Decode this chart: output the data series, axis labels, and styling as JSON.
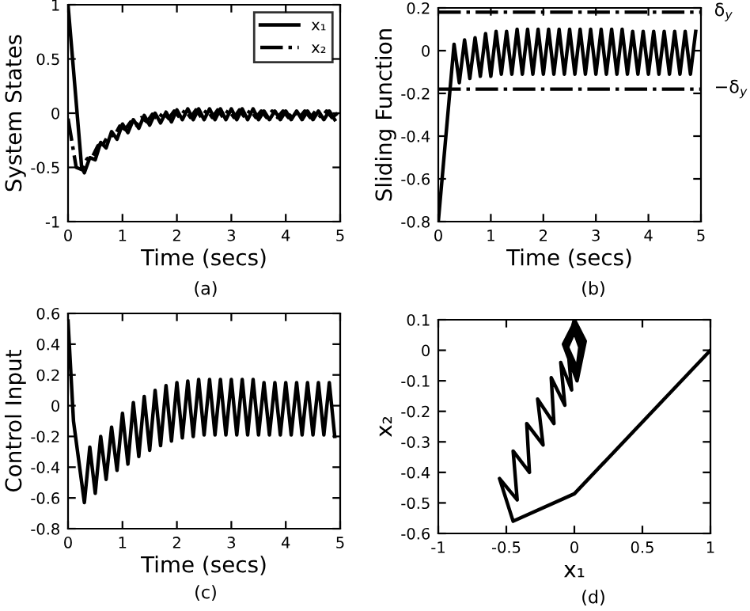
{
  "chart_data": [
    {
      "type": "line",
      "xlabel": "Time (secs)",
      "ylabel": "System States",
      "annotations": [
        "(a)"
      ],
      "xlim": [
        0,
        5
      ],
      "xticks": [
        0,
        1,
        2,
        3,
        4,
        5
      ],
      "ylim": [
        -1,
        1
      ],
      "yticks": [
        -1,
        -0.5,
        0,
        0.5,
        1
      ],
      "legend": "top right",
      "grid": false,
      "series": [
        {
          "name": "x₁",
          "color": "#000000",
          "line_style": "solid",
          "x": [
            0,
            0.25,
            0.3,
            0.4,
            0.5,
            0.6,
            0.7,
            0.8,
            0.9,
            1.0,
            1.1,
            1.2,
            1.3,
            1.4,
            1.5,
            1.6,
            1.7,
            1.8,
            1.9,
            2.0,
            2.1,
            2.2,
            2.3,
            2.4,
            2.5,
            2.6,
            2.7,
            2.8,
            2.9,
            3.0,
            3.1,
            3.2,
            3.3,
            3.4,
            3.5,
            3.6,
            3.7,
            3.8,
            3.9,
            4.0,
            4.1,
            4.2,
            4.3,
            4.4,
            4.5,
            4.6,
            4.7,
            4.8,
            4.9
          ],
          "values": [
            1,
            -0.5,
            -0.55,
            -0.41,
            -0.43,
            -0.27,
            -0.32,
            -0.17,
            -0.24,
            -0.1,
            -0.18,
            -0.06,
            -0.14,
            -0.02,
            -0.11,
            0.0,
            -0.09,
            0.01,
            -0.08,
            0.03,
            -0.06,
            0.04,
            -0.06,
            0.04,
            -0.06,
            0.04,
            -0.06,
            0.04,
            -0.06,
            0.04,
            -0.06,
            0.04,
            -0.06,
            0.04,
            -0.06,
            0.02,
            -0.06,
            0.02,
            -0.06,
            0.02,
            -0.06,
            0.02,
            -0.06,
            0.02,
            -0.06,
            0.02,
            -0.06,
            0.02,
            -0.06
          ]
        },
        {
          "name": "x₂",
          "color": "#000000",
          "line_style": "dashed",
          "x": [
            0,
            0.15,
            0.25,
            0.35,
            0.45,
            0.55,
            0.65,
            0.75,
            0.85,
            0.95,
            1.05,
            1.15,
            1.25,
            1.35,
            1.45,
            1.55,
            1.65,
            1.75,
            1.85,
            1.95,
            2.05,
            2.15,
            2.25,
            2.35,
            2.45,
            2.55,
            2.65,
            2.75,
            2.85,
            2.95,
            3.05,
            3.15,
            3.25,
            3.35,
            3.45,
            3.55,
            3.65,
            3.75,
            3.85,
            3.95,
            4.05,
            4.15,
            4.25,
            4.35,
            4.45,
            4.55,
            4.65,
            4.75,
            4.85,
            4.95
          ],
          "values": [
            -0.05,
            -0.5,
            -0.52,
            -0.42,
            -0.4,
            -0.3,
            -0.28,
            -0.2,
            -0.21,
            -0.12,
            -0.15,
            -0.08,
            -0.11,
            -0.04,
            -0.08,
            -0.01,
            -0.06,
            0.01,
            -0.05,
            0.02,
            -0.04,
            0.03,
            -0.04,
            0.03,
            -0.04,
            0.03,
            -0.04,
            0.03,
            -0.04,
            0.03,
            -0.04,
            0.03,
            -0.04,
            0.03,
            -0.04,
            0.02,
            -0.04,
            0.02,
            -0.04,
            0.02,
            -0.04,
            0.02,
            -0.04,
            0.02,
            -0.04,
            0.02,
            -0.04,
            0.02,
            -0.04,
            0.0
          ]
        }
      ]
    },
    {
      "type": "line",
      "xlabel": "Time (secs)",
      "ylabel": "Sliding Function",
      "annotations": [
        "(b)"
      ],
      "xlim": [
        0,
        5
      ],
      "xticks": [
        0,
        1,
        2,
        3,
        4,
        5
      ],
      "ylim": [
        -0.8,
        0.2
      ],
      "yticks": [
        -0.8,
        -0.6,
        -0.4,
        -0.2,
        0,
        0.2
      ],
      "grid": false,
      "ref_lines": [
        {
          "axis": "y",
          "value": 0.18,
          "label": "δ$_{y}$",
          "line_style": "dashed",
          "color": "#000000"
        },
        {
          "axis": "y",
          "value": -0.18,
          "label": "−δ$_{y}$",
          "line_style": "dashed",
          "color": "#000000"
        }
      ],
      "series": [
        {
          "color": "#000000",
          "x": [
            0,
            0.3,
            0.4,
            0.5,
            0.6,
            0.7,
            0.8,
            0.9,
            1.0,
            1.1,
            1.2,
            1.3,
            1.4,
            1.5,
            1.6,
            1.7,
            1.8,
            1.9,
            2.0,
            2.1,
            2.2,
            2.3,
            2.4,
            2.5,
            2.6,
            2.7,
            2.8,
            2.9,
            3.0,
            3.1,
            3.2,
            3.3,
            3.4,
            3.5,
            3.6,
            3.7,
            3.8,
            3.9,
            4.0,
            4.1,
            4.2,
            4.3,
            4.4,
            4.5,
            4.6,
            4.7,
            4.8,
            4.9
          ],
          "values": [
            -0.8,
            0.03,
            -0.15,
            0.05,
            -0.13,
            0.06,
            -0.12,
            0.08,
            -0.12,
            0.09,
            -0.11,
            0.09,
            -0.11,
            0.1,
            -0.11,
            0.1,
            -0.11,
            0.1,
            -0.11,
            0.1,
            -0.11,
            0.1,
            -0.11,
            0.1,
            -0.11,
            0.1,
            -0.11,
            0.1,
            -0.11,
            0.1,
            -0.11,
            0.1,
            -0.11,
            0.1,
            -0.11,
            0.09,
            -0.11,
            0.09,
            -0.11,
            0.09,
            -0.11,
            0.09,
            -0.11,
            0.09,
            -0.11,
            0.09,
            -0.11,
            0.09
          ]
        }
      ]
    },
    {
      "type": "line",
      "xlabel": "Time (secs)",
      "ylabel": "Control Input",
      "annotations": [
        "(c)"
      ],
      "xlim": [
        0,
        5
      ],
      "xticks": [
        0,
        1,
        2,
        3,
        4,
        5
      ],
      "ylim": [
        -0.8,
        0.6
      ],
      "yticks": [
        -0.8,
        -0.6,
        -0.4,
        -0.2,
        0,
        0.2,
        0.4,
        0.6
      ],
      "grid": false,
      "series": [
        {
          "color": "#000000",
          "x": [
            0,
            0.1,
            0.3,
            0.4,
            0.5,
            0.6,
            0.7,
            0.8,
            0.9,
            1.0,
            1.1,
            1.2,
            1.3,
            1.4,
            1.5,
            1.6,
            1.7,
            1.8,
            1.9,
            2.0,
            2.1,
            2.2,
            2.3,
            2.4,
            2.5,
            2.6,
            2.7,
            2.8,
            2.9,
            3.0,
            3.1,
            3.2,
            3.3,
            3.4,
            3.5,
            3.6,
            3.7,
            3.8,
            3.9,
            4.0,
            4.1,
            4.2,
            4.3,
            4.4,
            4.5,
            4.6,
            4.7,
            4.8,
            4.9
          ],
          "values": [
            0.55,
            -0.1,
            -0.63,
            -0.27,
            -0.57,
            -0.2,
            -0.48,
            -0.14,
            -0.42,
            -0.05,
            -0.38,
            0.02,
            -0.33,
            0.06,
            -0.29,
            0.1,
            -0.26,
            0.13,
            -0.23,
            0.15,
            -0.21,
            0.16,
            -0.2,
            0.17,
            -0.19,
            0.17,
            -0.19,
            0.17,
            -0.19,
            0.17,
            -0.19,
            0.17,
            -0.19,
            0.17,
            -0.19,
            0.15,
            -0.19,
            0.15,
            -0.19,
            0.15,
            -0.19,
            0.15,
            -0.19,
            0.15,
            -0.19,
            0.15,
            -0.19,
            0.15,
            -0.2
          ]
        }
      ]
    },
    {
      "type": "line",
      "xlabel": "x₁",
      "ylabel": "x₂",
      "annotations": [
        "(d)"
      ],
      "xlim": [
        -1,
        1
      ],
      "xticks": [
        -1,
        -0.5,
        0,
        0.5,
        1
      ],
      "ylim": [
        -0.6,
        0.1
      ],
      "yticks": [
        -0.6,
        -0.5,
        -0.4,
        -0.3,
        -0.2,
        -0.1,
        0,
        0.1
      ],
      "grid": false,
      "series": [
        {
          "color": "#000000",
          "x": [
            1,
            0,
            -0.45,
            -0.55,
            -0.42,
            -0.45,
            -0.33,
            -0.35,
            -0.23,
            -0.27,
            -0.15,
            -0.17,
            -0.07,
            -0.1,
            -0.02,
            -0.05,
            0,
            0.08,
            0.02,
            -0.08,
            0,
            0.07,
            0.02,
            -0.07,
            -0.01,
            0.06,
            0.02,
            -0.06,
            -0.01,
            0.05,
            0.02,
            -0.05,
            0,
            0.04,
            0.02,
            -0.04
          ],
          "values": [
            0,
            -0.47,
            -0.56,
            -0.42,
            -0.49,
            -0.33,
            -0.4,
            -0.24,
            -0.31,
            -0.16,
            -0.24,
            -0.09,
            -0.18,
            -0.04,
            -0.13,
            0.02,
            0.1,
            0.03,
            -0.1,
            0.02,
            0.09,
            0.02,
            -0.09,
            0.01,
            0.08,
            0.02,
            -0.08,
            0.01,
            0.07,
            0.01,
            -0.07,
            0.01,
            0.06,
            0.01,
            -0.06,
            0.0
          ]
        }
      ]
    }
  ]
}
